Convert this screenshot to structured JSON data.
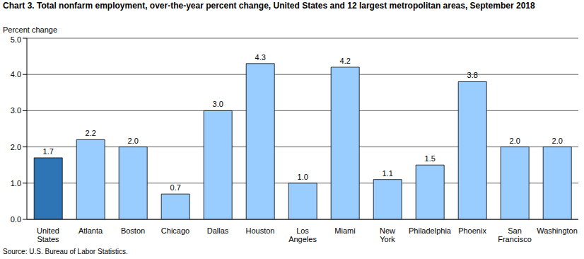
{
  "chart_data": {
    "type": "bar",
    "title": "Chart 3. Total nonfarm employment, over-the-year percent change, United States and 12 largest metropolitan areas, September 2018",
    "y_label": "Percent change",
    "source": "Source: U.S. Bureau of Labor Statistics.",
    "categories": [
      "United States",
      "Atlanta",
      "Boston",
      "Chicago",
      "Dallas",
      "Houston",
      "Los Angeles",
      "Miami",
      "New York",
      "Philadelphia",
      "Phoenix",
      "San Francisco",
      "Washington"
    ],
    "values": [
      1.7,
      2.2,
      2.0,
      0.7,
      3.0,
      4.3,
      1.0,
      4.2,
      1.1,
      1.5,
      3.8,
      2.0,
      2.0
    ],
    "value_labels": [
      "1.7",
      "2.2",
      "2.0",
      "0.7",
      "3.0",
      "4.3",
      "1.0",
      "4.2",
      "1.1",
      "1.5",
      "3.8",
      "2.0",
      "2.0"
    ],
    "colors": [
      "#2e75b6",
      "#99ccff",
      "#99ccff",
      "#99ccff",
      "#99ccff",
      "#99ccff",
      "#99ccff",
      "#99ccff",
      "#99ccff",
      "#99ccff",
      "#99ccff",
      "#99ccff",
      "#99ccff"
    ],
    "ylim": [
      0,
      5
    ],
    "yticks": [
      {
        "value": 0,
        "label": "0.0"
      },
      {
        "value": 1,
        "label": "1.0"
      },
      {
        "value": 2,
        "label": "2.0"
      },
      {
        "value": 3,
        "label": "3.0"
      },
      {
        "value": 4,
        "label": "4.0"
      },
      {
        "value": 5,
        "label": "5.0"
      }
    ],
    "grid": true,
    "data_labels": true
  }
}
